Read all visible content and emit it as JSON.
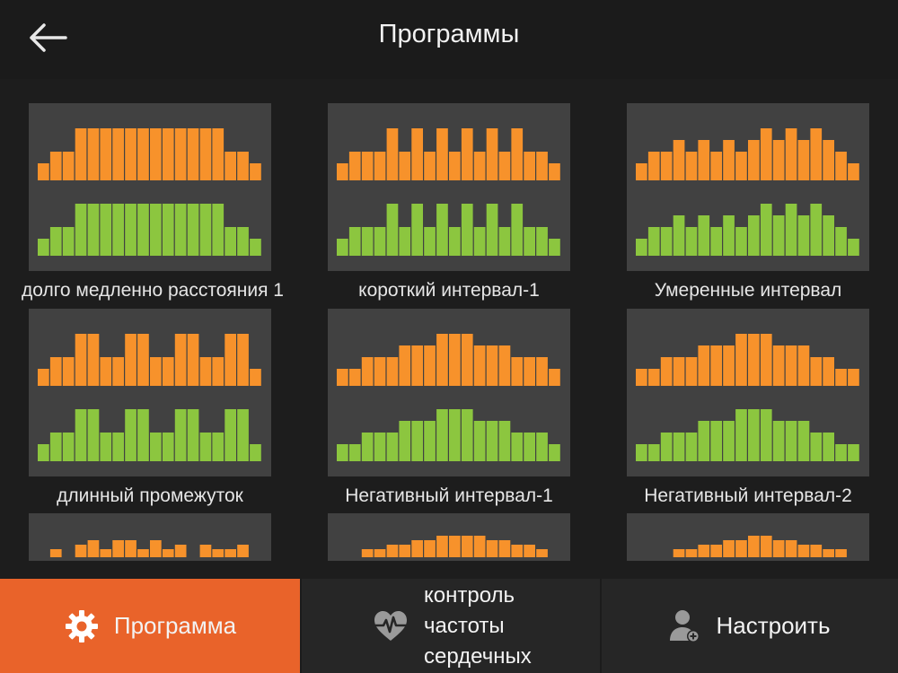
{
  "header": {
    "title": "Программы",
    "back_icon": "arrow-left-icon"
  },
  "colors": {
    "orange": "#f7922b",
    "green": "#8cc63f",
    "card_bg": "#414141",
    "accent": "#e9632a"
  },
  "programs": [
    {
      "label": "долго медленно расстояния 1",
      "pattern": "long-slow"
    },
    {
      "label": "короткий интервал-1",
      "pattern": "short-interval"
    },
    {
      "label": "Умеренные интервал",
      "pattern": "moderate-interval"
    },
    {
      "label": "длинный промежуток",
      "pattern": "long-gap"
    },
    {
      "label": "Негативный интервал-1",
      "pattern": "negative-1"
    },
    {
      "label": "Негативный интервал-2",
      "pattern": "negative-2"
    },
    {
      "label": "",
      "pattern": "partial-1"
    },
    {
      "label": "",
      "pattern": "partial-2"
    },
    {
      "label": "",
      "pattern": "partial-3"
    }
  ],
  "bottom_nav": {
    "program": {
      "label": "Программа",
      "icon": "gear-icon"
    },
    "heart_rate": {
      "label_lines": [
        "контроль",
        "частоты",
        "сердечных"
      ],
      "icon": "heart-pulse-icon"
    },
    "settings": {
      "label": "Настроить",
      "icon": "user-settings-icon"
    }
  }
}
